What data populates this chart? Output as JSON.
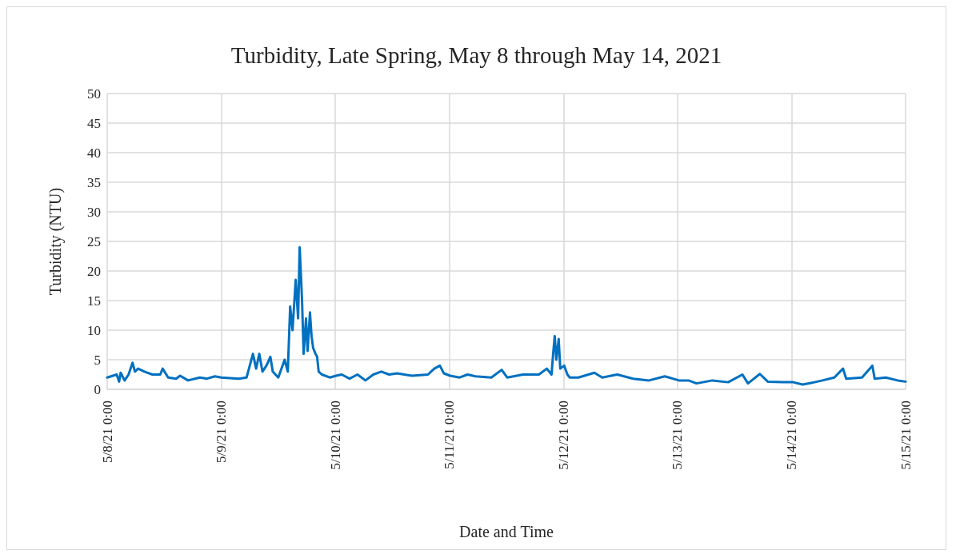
{
  "chart_data": {
    "type": "line",
    "title": "Turbidity, Late Spring, May 8 through May 14, 2021",
    "xlabel": "Date and Time",
    "ylabel": "Turbidity (NTU)",
    "x": [
      "2021-05-08T00:00",
      "2021-05-08T02:00",
      "2021-05-08T02:30",
      "2021-05-08T02:50",
      "2021-05-08T03:40",
      "2021-05-08T04:30",
      "2021-05-08T05:20",
      "2021-05-08T05:50",
      "2021-05-08T06:30",
      "2021-05-08T07:50",
      "2021-05-08T09:30",
      "2021-05-08T11:10",
      "2021-05-08T11:40",
      "2021-05-08T12:50",
      "2021-05-08T14:30",
      "2021-05-08T15:20",
      "2021-05-08T17:00",
      "2021-05-08T19:30",
      "2021-05-08T21:00",
      "2021-05-08T22:40",
      "2021-05-09T00:00",
      "2021-05-09T03:40",
      "2021-05-09T05:20",
      "2021-05-09T06:40",
      "2021-05-09T07:20",
      "2021-05-09T08:00",
      "2021-05-09T08:40",
      "2021-05-09T09:30",
      "2021-05-09T10:20",
      "2021-05-09T10:50",
      "2021-05-09T12:00",
      "2021-05-09T13:20",
      "2021-05-09T14:00",
      "2021-05-09T14:30",
      "2021-05-09T15:00",
      "2021-05-09T15:40",
      "2021-05-09T16:10",
      "2021-05-09T16:30",
      "2021-05-09T17:00",
      "2021-05-09T17:20",
      "2021-05-09T17:50",
      "2021-05-09T18:10",
      "2021-05-09T18:40",
      "2021-05-09T19:00",
      "2021-05-09T19:20",
      "2021-05-09T19:50",
      "2021-05-09T20:10",
      "2021-05-09T20:30",
      "2021-05-09T21:10",
      "2021-05-09T22:50",
      "2021-05-10T00:10",
      "2021-05-10T01:20",
      "2021-05-10T03:00",
      "2021-05-10T04:40",
      "2021-05-10T06:20",
      "2021-05-10T08:00",
      "2021-05-10T09:40",
      "2021-05-10T11:20",
      "2021-05-10T13:00",
      "2021-05-10T14:30",
      "2021-05-10T16:10",
      "2021-05-10T19:30",
      "2021-05-10T20:50",
      "2021-05-10T22:00",
      "2021-05-10T22:50",
      "2021-05-11T00:10",
      "2021-05-11T02:10",
      "2021-05-11T03:50",
      "2021-05-11T05:30",
      "2021-05-11T08:50",
      "2021-05-11T11:00",
      "2021-05-11T12:10",
      "2021-05-11T15:30",
      "2021-05-11T18:50",
      "2021-05-11T20:30",
      "2021-05-11T21:30",
      "2021-05-11T21:50",
      "2021-05-11T22:10",
      "2021-05-11T22:30",
      "2021-05-11T23:00",
      "2021-05-11T23:20",
      "2021-05-12T00:10",
      "2021-05-12T00:50",
      "2021-05-12T01:20",
      "2021-05-12T03:10",
      "2021-05-12T06:30",
      "2021-05-12T08:10",
      "2021-05-12T11:20",
      "2021-05-12T14:40",
      "2021-05-12T18:00",
      "2021-05-12T21:20",
      "2021-05-13T00:20",
      "2021-05-13T02:20",
      "2021-05-13T04:00",
      "2021-05-13T07:20",
      "2021-05-13T10:40",
      "2021-05-13T13:40",
      "2021-05-13T14:50",
      "2021-05-13T17:20",
      "2021-05-13T19:00",
      "2021-05-13T22:10",
      "2021-05-14T00:20",
      "2021-05-14T02:20",
      "2021-05-14T04:50",
      "2021-05-14T06:30",
      "2021-05-14T09:00",
      "2021-05-14T10:50",
      "2021-05-14T11:30",
      "2021-05-14T14:50",
      "2021-05-14T17:00",
      "2021-05-14T17:30",
      "2021-05-14T19:50",
      "2021-05-14T22:20",
      "2021-05-15T00:00"
    ],
    "series": [
      {
        "color": "#0070c0",
        "values": [
          2.0,
          2.5,
          1.3,
          2.8,
          1.5,
          2.5,
          4.5,
          3,
          3.5,
          3,
          2.5,
          2.5,
          3.5,
          2,
          1.8,
          2.3,
          1.5,
          2,
          1.8,
          2.2,
          2,
          1.8,
          2,
          6,
          3.5,
          6,
          3,
          4,
          5.5,
          3,
          2,
          5,
          3,
          14,
          10,
          18.5,
          12,
          24,
          15,
          6,
          12,
          6.5,
          13,
          9,
          7,
          6,
          5.5,
          3,
          2.5,
          2,
          2.3,
          2.5,
          1.8,
          2.5,
          1.5,
          2.5,
          3,
          2.5,
          2.7,
          2.5,
          2.3,
          2.5,
          3.5,
          4,
          2.7,
          2.3,
          2,
          2.5,
          2.2,
          2,
          3.3,
          2,
          2.5,
          2.5,
          3.5,
          2.5,
          6,
          9,
          5,
          8.5,
          3.5,
          4,
          2.5,
          2,
          2,
          2.8,
          2,
          2.5,
          1.8,
          1.5,
          2.2,
          1.5,
          1.5,
          1,
          1.5,
          1.2,
          2.5,
          1,
          2.6,
          1.3,
          1.2,
          1.2,
          0.8,
          1.2,
          1.5,
          2,
          3.5,
          1.8,
          2,
          4,
          1.8,
          2,
          1.5,
          1.3
        ]
      }
    ],
    "xlim": [
      "2021-05-08T00:00",
      "2021-05-15T00:00"
    ],
    "xticks": [
      {
        "value": "2021-05-08T00:00",
        "label": "5/8/21 0:00"
      },
      {
        "value": "2021-05-09T00:00",
        "label": "5/9/21 0:00"
      },
      {
        "value": "2021-05-10T00:00",
        "label": "5/10/21 0:00"
      },
      {
        "value": "2021-05-11T00:00",
        "label": "5/11/21 0:00"
      },
      {
        "value": "2021-05-12T00:00",
        "label": "5/12/21 0:00"
      },
      {
        "value": "2021-05-13T00:00",
        "label": "5/13/21 0:00"
      },
      {
        "value": "2021-05-14T00:00",
        "label": "5/14/21 0:00"
      },
      {
        "value": "2021-05-15T00:00",
        "label": "5/15/21 0:00"
      }
    ],
    "ylim": [
      0,
      50
    ],
    "yticks": [
      0,
      5,
      10,
      15,
      20,
      25,
      30,
      35,
      40,
      45,
      50
    ],
    "grid": true,
    "marker": "none",
    "line_style": "solid"
  }
}
